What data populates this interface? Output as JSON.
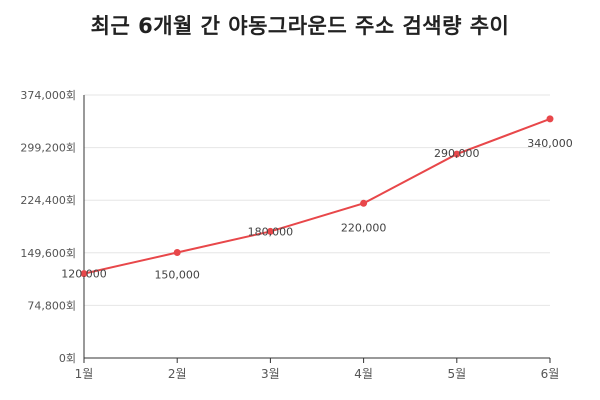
{
  "chart_data": {
    "type": "line",
    "title": "최근 6개월 간 야동그라운드 주소 검색량 추이",
    "categories": [
      "1월",
      "2월",
      "3월",
      "4월",
      "5월",
      "6월"
    ],
    "series": [
      {
        "values": [
          120000,
          150000,
          180000,
          220000,
          290000,
          340000
        ],
        "labels": [
          "120,000",
          "150,000",
          "180,000",
          "220,000",
          "290,000",
          "340,000"
        ],
        "color": "#e8474a"
      }
    ],
    "ylim": [
      0,
      374000
    ],
    "yticks": [
      {
        "value": 0,
        "label": "0회"
      },
      {
        "value": 74800,
        "label": "74,800회"
      },
      {
        "value": 149600,
        "label": "149,600회"
      },
      {
        "value": 224400,
        "label": "224,400회"
      },
      {
        "value": 299200,
        "label": "299,200회"
      },
      {
        "value": 374000,
        "label": "374,000회"
      }
    ],
    "grid": true,
    "legend": "none"
  }
}
